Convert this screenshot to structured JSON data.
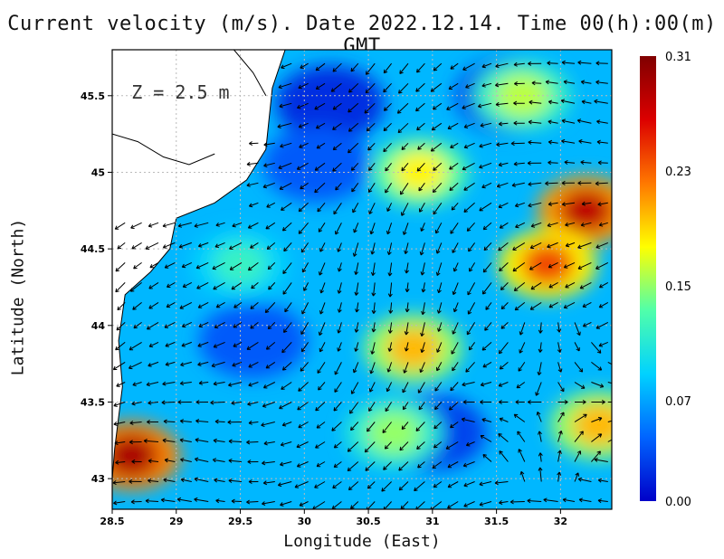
{
  "chart_data": {
    "type": "heatmap",
    "title": "Current velocity (m/s). Date 2022.12.14. Time 00(h):00(m) GMT",
    "xlabel": "Longitude (East)",
    "ylabel": "Latitude (North)",
    "annotation": "Z = 2.5 m",
    "xlim": [
      28.5,
      32.4
    ],
    "ylim": [
      42.8,
      45.8
    ],
    "x_ticks": [
      "28.5",
      "29",
      "29.5",
      "30",
      "30.5",
      "31",
      "31.5",
      "32"
    ],
    "y_ticks": [
      "43",
      "43.5",
      "44",
      "44.5",
      "45",
      "45.5"
    ],
    "grid": true,
    "colorbar": {
      "min": 0.0,
      "max": 0.31,
      "tick_labels": [
        "0.31",
        "0.23",
        "0.15",
        "0.07",
        "0.00"
      ],
      "colors": [
        "#0000c8",
        "#0064ff",
        "#00d2ff",
        "#50ffaa",
        "#ffff00",
        "#ff7800",
        "#dc0000",
        "#800000"
      ]
    },
    "speed_hotspots": [
      {
        "lon": 28.65,
        "lat": 43.15,
        "speed": 0.29
      },
      {
        "lon": 32.2,
        "lat": 44.75,
        "speed": 0.28
      },
      {
        "lon": 31.9,
        "lat": 44.4,
        "speed": 0.24
      },
      {
        "lon": 30.85,
        "lat": 43.85,
        "speed": 0.2
      },
      {
        "lon": 30.9,
        "lat": 45.0,
        "speed": 0.18
      },
      {
        "lon": 32.3,
        "lat": 43.35,
        "speed": 0.2
      },
      {
        "lon": 31.7,
        "lat": 45.5,
        "speed": 0.16
      },
      {
        "lon": 30.7,
        "lat": 43.3,
        "speed": 0.15
      },
      {
        "lon": 29.5,
        "lat": 44.4,
        "speed": 0.12
      }
    ],
    "speed_minima": [
      {
        "lon": 30.2,
        "lat": 45.45,
        "speed": 0.02
      },
      {
        "lon": 31.6,
        "lat": 45.5,
        "speed": 0.03
      },
      {
        "lon": 31.0,
        "lat": 43.3,
        "speed": 0.03
      },
      {
        "lon": 29.6,
        "lat": 43.9,
        "speed": 0.04
      },
      {
        "lon": 30.1,
        "lat": 45.05,
        "speed": 0.04
      }
    ],
    "flow_note": "Predominantly south-westward current vectors, with convergence near (31.9, 43.5) and cyclonic curvature in the north-east."
  }
}
